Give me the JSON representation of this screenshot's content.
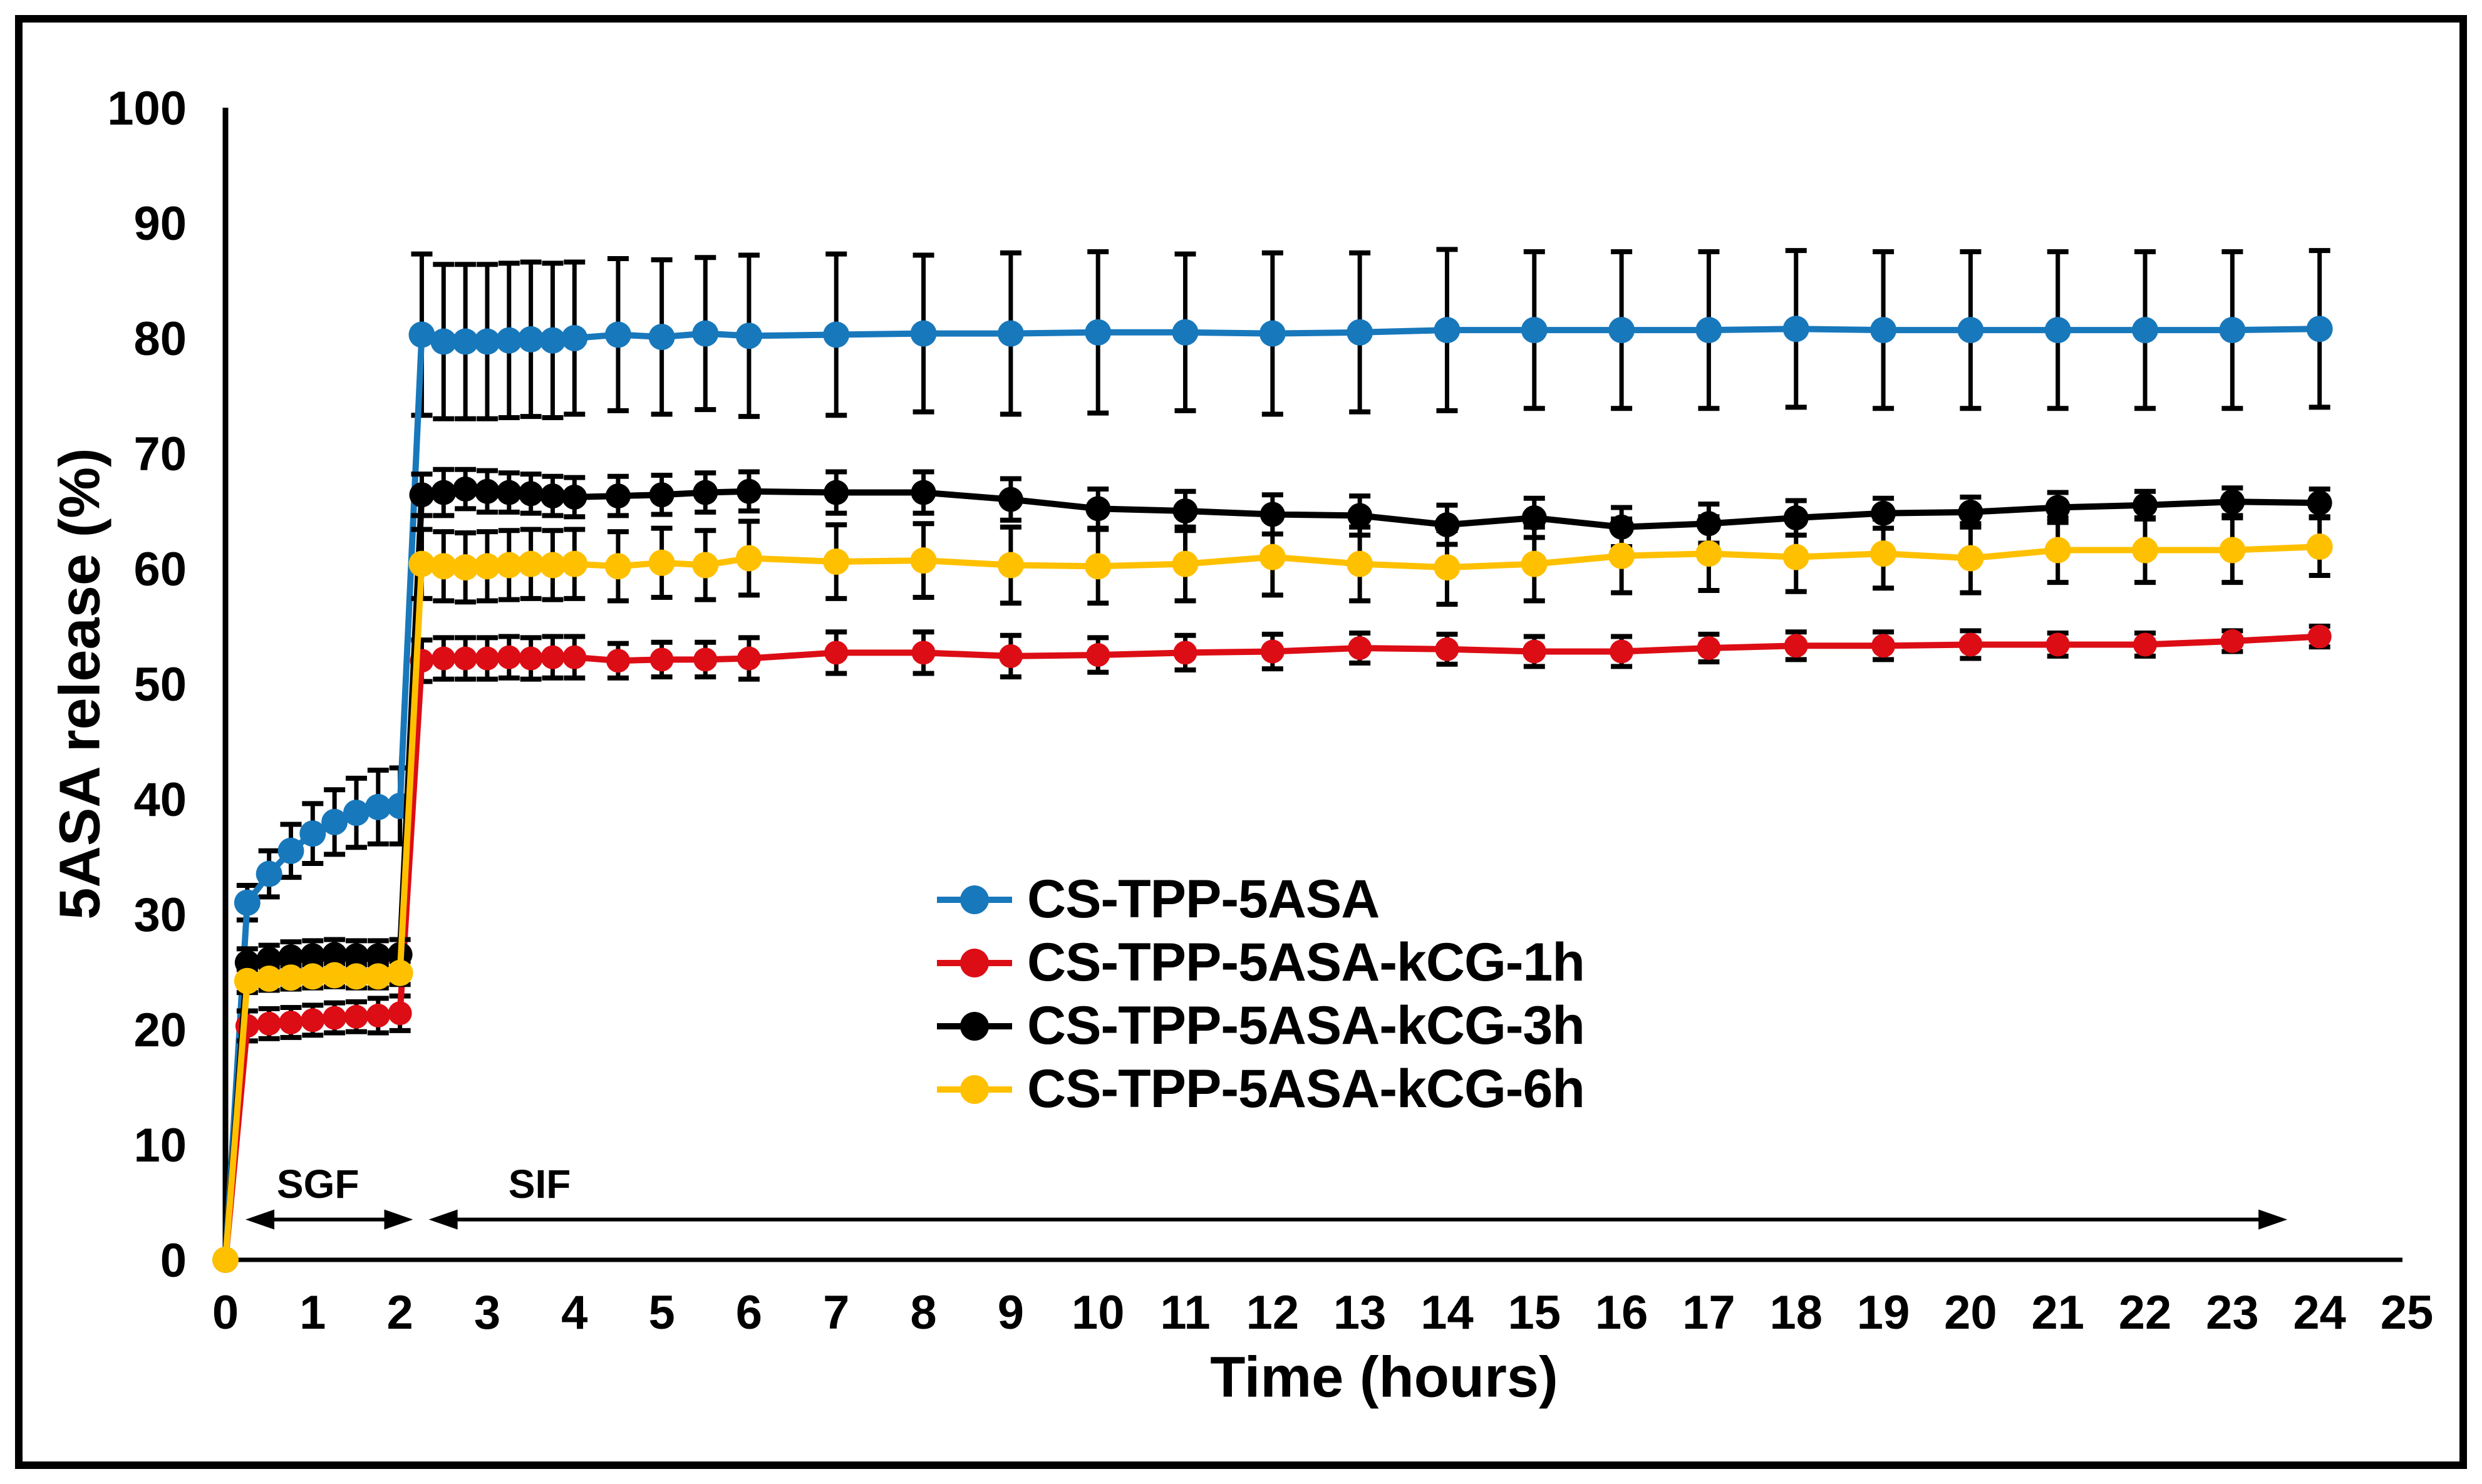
{
  "chart_data": {
    "type": "line",
    "title": "",
    "xlabel": "Time (hours)",
    "ylabel": "5ASA release (%)",
    "xlim": [
      0,
      25
    ],
    "ylim": [
      0,
      100
    ],
    "grid": false,
    "legend_position": "inside-center",
    "error_bar_color": "#000000",
    "x_ticks": [
      0,
      1,
      2,
      3,
      4,
      5,
      6,
      7,
      8,
      9,
      10,
      11,
      12,
      13,
      14,
      15,
      16,
      17,
      18,
      19,
      20,
      21,
      22,
      23,
      24,
      25
    ],
    "y_ticks": [
      0,
      10,
      20,
      30,
      40,
      50,
      60,
      70,
      80,
      90,
      100
    ],
    "x": [
      0,
      0.25,
      0.5,
      0.75,
      1,
      1.25,
      1.5,
      1.75,
      2,
      2.25,
      2.5,
      2.75,
      3,
      3.25,
      3.5,
      3.75,
      4,
      4.5,
      5,
      5.5,
      6,
      7,
      8,
      9,
      10,
      11,
      12,
      13,
      14,
      15,
      16,
      17,
      18,
      19,
      20,
      21,
      22,
      23,
      24
    ],
    "series": [
      {
        "name": "CS-TPP-5ASA",
        "color": "#1878BC",
        "marker_radius": 21,
        "values": [
          0,
          31,
          33.5,
          35.5,
          37,
          38,
          38.8,
          39.3,
          39.4,
          80.3,
          79.7,
          79.7,
          79.7,
          79.8,
          79.9,
          79.8,
          80,
          80.3,
          80.1,
          80.4,
          80.2,
          80.3,
          80.4,
          80.4,
          80.5,
          80.5,
          80.4,
          80.5,
          80.7,
          80.7,
          80.7,
          80.7,
          80.8,
          80.7,
          80.7,
          80.7,
          80.7,
          80.7,
          80.8
        ],
        "errors": [
          0,
          1.5,
          2,
          2.3,
          2.6,
          2.8,
          3,
          3.2,
          3.3,
          7,
          6.7,
          6.7,
          6.7,
          6.7,
          6.7,
          6.7,
          6.6,
          6.6,
          6.7,
          6.6,
          7,
          7,
          6.8,
          7,
          7,
          6.8,
          7,
          6.9,
          7,
          6.8,
          6.8,
          6.8,
          6.8,
          6.8,
          6.8,
          6.8,
          6.8,
          6.8,
          6.8
        ]
      },
      {
        "name": "CS-TPP-5ASA-kCG-1h",
        "color": "#DC0D15",
        "marker_radius": 19,
        "values": [
          0,
          20.3,
          20.5,
          20.6,
          20.8,
          21,
          21.1,
          21.2,
          21.4,
          52,
          52.2,
          52.2,
          52.2,
          52.3,
          52.2,
          52.3,
          52.3,
          52,
          52.1,
          52.1,
          52.2,
          52.7,
          52.7,
          52.4,
          52.5,
          52.7,
          52.8,
          53.1,
          53,
          52.8,
          52.8,
          53.1,
          53.3,
          53.3,
          53.4,
          53.4,
          53.4,
          53.7,
          54.1
        ],
        "errors": [
          0,
          1.3,
          1.3,
          1.3,
          1.3,
          1.3,
          1.3,
          1.5,
          1.5,
          1.8,
          1.8,
          1.8,
          1.8,
          1.8,
          1.8,
          1.8,
          1.8,
          1.5,
          1.5,
          1.5,
          1.8,
          1.8,
          1.8,
          1.8,
          1.5,
          1.5,
          1.5,
          1.3,
          1.3,
          1.3,
          1.3,
          1.2,
          1.2,
          1.2,
          1.2,
          1,
          1,
          0.9,
          0.9
        ]
      },
      {
        "name": "CS-TPP-5ASA-kCG-3h",
        "color": "#000000",
        "marker_radius": 20,
        "values": [
          0,
          25.8,
          26.1,
          26.3,
          26.4,
          26.5,
          26.4,
          26.4,
          26.5,
          66.4,
          66.6,
          66.9,
          66.7,
          66.6,
          66.5,
          66.3,
          66.2,
          66.3,
          66.4,
          66.6,
          66.7,
          66.6,
          66.6,
          66,
          65.2,
          65,
          64.7,
          64.6,
          63.8,
          64.4,
          63.6,
          63.9,
          64.4,
          64.8,
          64.9,
          65.3,
          65.5,
          65.8,
          65.7
        ],
        "errors": [
          0,
          1.2,
          1.2,
          1.3,
          1.3,
          1.3,
          1.3,
          1.3,
          1.3,
          1.8,
          2,
          1.7,
          1.8,
          1.7,
          1.7,
          1.7,
          1.7,
          1.7,
          1.7,
          1.7,
          1.7,
          1.8,
          1.8,
          1.8,
          1.7,
          1.7,
          1.7,
          1.7,
          1.7,
          1.7,
          1.7,
          1.7,
          1.5,
          1.3,
          1.3,
          1.3,
          1.2,
          1.2,
          1.2
        ]
      },
      {
        "name": "CS-TPP-5ASA-kCG-6h",
        "color": "#FFC000",
        "marker_radius": 21,
        "values": [
          0,
          24.2,
          24.4,
          24.5,
          24.6,
          24.7,
          24.6,
          24.6,
          24.9,
          60.4,
          60.2,
          60.1,
          60.2,
          60.3,
          60.4,
          60.3,
          60.4,
          60.2,
          60.5,
          60.3,
          60.9,
          60.6,
          60.7,
          60.3,
          60.2,
          60.4,
          61,
          60.4,
          60.1,
          60.4,
          61.1,
          61.3,
          61,
          61.3,
          60.9,
          61.6,
          61.6,
          61.6,
          61.9
        ],
        "errors": [
          0,
          1,
          1,
          1,
          1,
          1,
          1,
          1,
          1,
          3,
          3,
          3,
          3,
          3,
          3,
          3,
          3,
          3,
          3,
          3,
          3.2,
          3.2,
          3.2,
          3.3,
          3.2,
          3.2,
          3.3,
          3.2,
          3.2,
          3.2,
          3.2,
          3.2,
          3,
          3,
          3,
          2.8,
          2.8,
          2.8,
          2.5
        ]
      }
    ],
    "annotations": [
      {
        "label": "SGF",
        "x_start": 0.23,
        "x_end": 2.15,
        "arrow_y": 3.5,
        "label_x": 1.06,
        "label_y": 6.6
      },
      {
        "label": "SIF",
        "x_start": 2.33,
        "x_end": 23.63,
        "arrow_y": 3.5,
        "label_x": 3.6,
        "label_y": 6.6
      }
    ]
  }
}
